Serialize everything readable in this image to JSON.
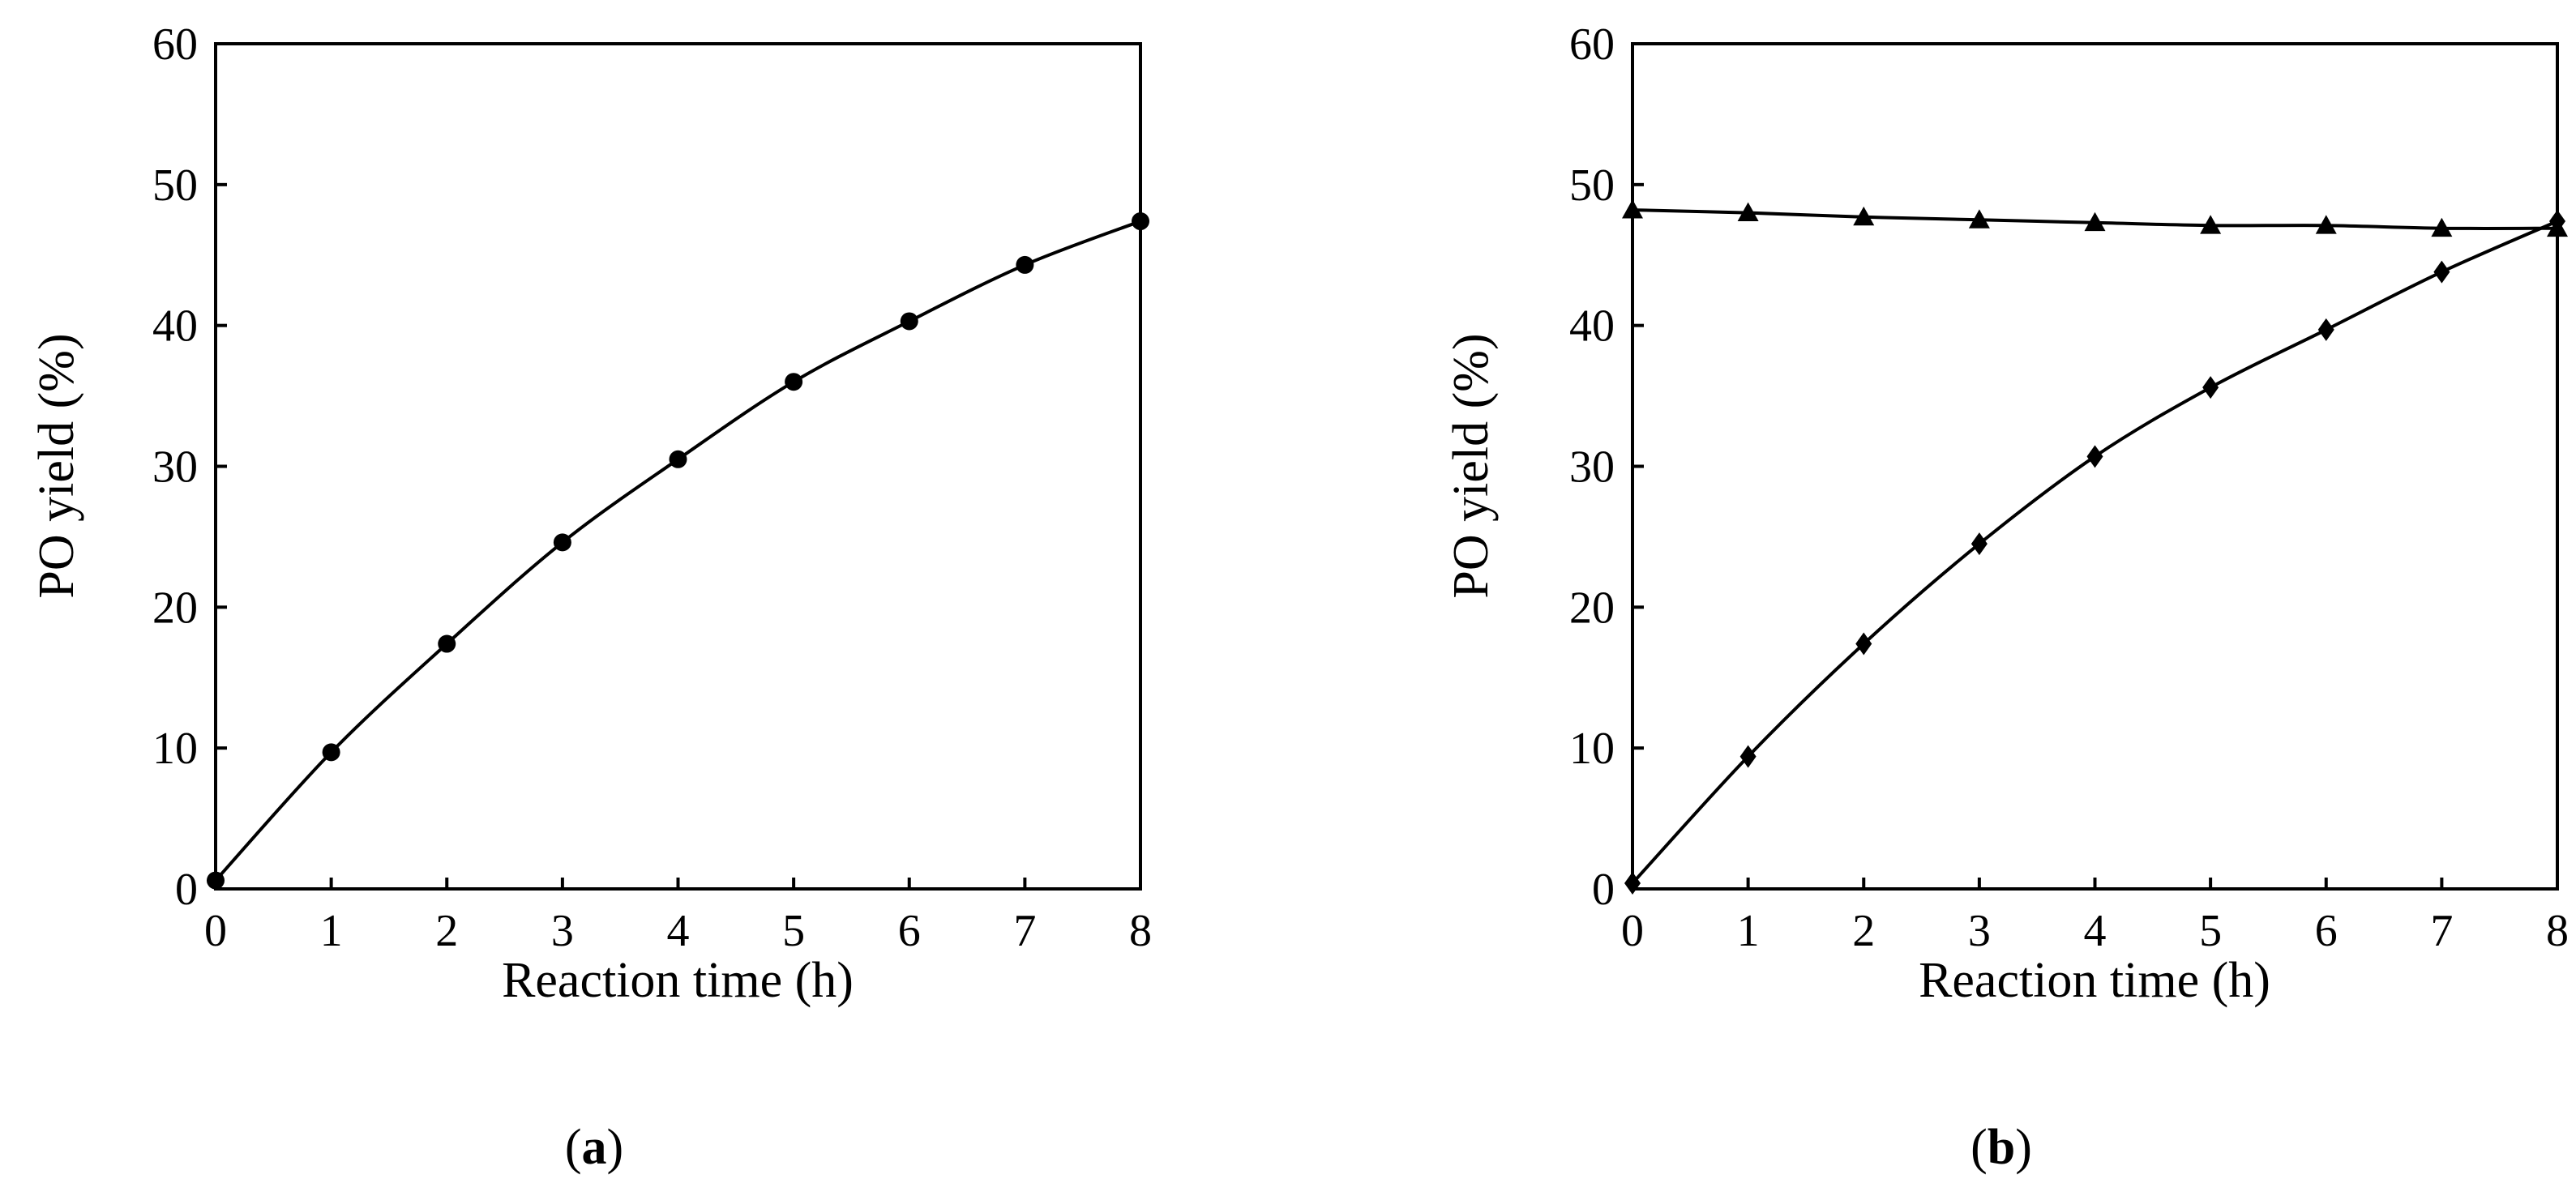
{
  "chart_data": [
    {
      "panel": "a",
      "type": "line",
      "caption": {
        "open": "(",
        "letter": "a",
        "close": ")"
      },
      "title": "",
      "xlabel": "Reaction time (h)",
      "ylabel": "PO yield (%)",
      "xlim": [
        0,
        8
      ],
      "ylim": [
        0,
        60
      ],
      "xticks": [
        "0",
        "1",
        "2",
        "3",
        "4",
        "5",
        "6",
        "7",
        "8"
      ],
      "yticks": [
        "0",
        "10",
        "20",
        "30",
        "40",
        "50",
        "60"
      ],
      "grid": false,
      "legend": "none",
      "series": [
        {
          "name": "PO yield",
          "marker": "circle",
          "x": [
            0,
            1,
            2,
            3,
            4,
            5,
            6,
            7,
            8
          ],
          "values": [
            0.6,
            9.7,
            17.4,
            24.6,
            30.5,
            36.0,
            40.3,
            44.3,
            47.4
          ]
        }
      ]
    },
    {
      "panel": "b",
      "type": "line",
      "caption": {
        "open": "(",
        "letter": "b",
        "close": ")"
      },
      "title": "",
      "xlabel": "Reaction time (h)",
      "ylabel": "PO yield (%)",
      "xlim": [
        0,
        8
      ],
      "ylim": [
        0,
        60
      ],
      "xticks": [
        "0",
        "1",
        "2",
        "3",
        "4",
        "5",
        "6",
        "7",
        "8"
      ],
      "yticks": [
        "0",
        "10",
        "20",
        "30",
        "40",
        "50",
        "60"
      ],
      "grid": false,
      "legend": "none",
      "series": [
        {
          "name": "Triangle series",
          "marker": "triangle",
          "x": [
            0,
            1,
            2,
            3,
            4,
            5,
            6,
            7,
            8
          ],
          "values": [
            48.2,
            48.0,
            47.7,
            47.5,
            47.3,
            47.1,
            47.1,
            46.9,
            46.9
          ]
        },
        {
          "name": "Diamond series",
          "marker": "diamond",
          "x": [
            0,
            1,
            2,
            3,
            4,
            5,
            6,
            7,
            8
          ],
          "values": [
            0.4,
            9.4,
            17.4,
            24.5,
            30.7,
            35.6,
            39.7,
            43.8,
            47.4
          ]
        }
      ]
    }
  ]
}
